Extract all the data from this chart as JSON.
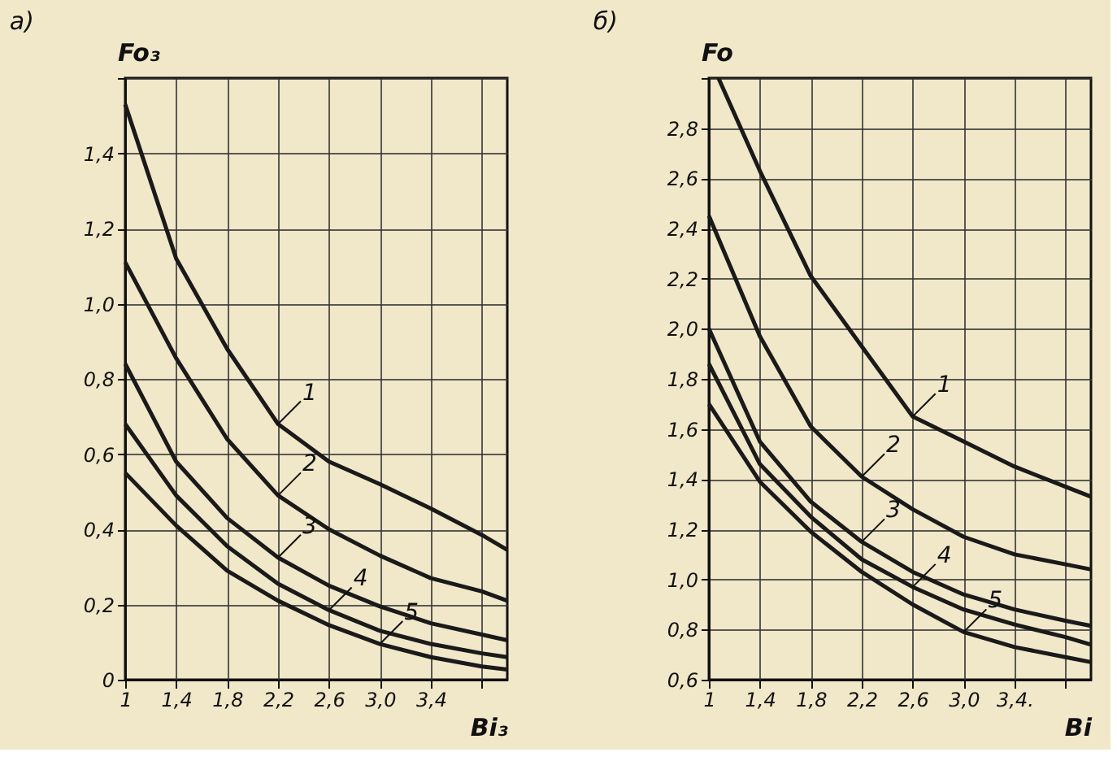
{
  "chart_data": [
    {
      "type": "line",
      "title": "а)",
      "xlabel": "Bi₃",
      "ylabel": "Fo₃",
      "grid": true,
      "legend": false,
      "marker": "none",
      "line_style": "solid",
      "xlim": [
        1,
        4.0
      ],
      "ylim": [
        0,
        1.6
      ],
      "xticks": [
        1,
        {
          "value": 1.4,
          "label": "1,4"
        },
        {
          "value": 1.8,
          "label": "1,8"
        },
        {
          "value": 2.2,
          "label": "2,2"
        },
        {
          "value": 2.6,
          "label": "2,6"
        },
        {
          "value": 3.0,
          "label": "3,0"
        },
        {
          "value": 3.4,
          "label": "3,4"
        },
        {
          "value": 3.8,
          "label": null
        }
      ],
      "yticks": [
        0,
        {
          "value": 0.2,
          "label": "0,2"
        },
        {
          "value": 0.4,
          "label": "0,4"
        },
        {
          "value": 0.6,
          "label": "0,6"
        },
        {
          "value": 0.8,
          "label": "0,8"
        },
        {
          "value": 1.0,
          "label": "1,0"
        },
        {
          "value": 1.2,
          "label": "1,2"
        },
        {
          "value": 1.4,
          "label": "1,4"
        },
        {
          "value": 1.6,
          "label": null
        }
      ],
      "x": [
        1,
        1.4,
        1.8,
        2.2,
        2.6,
        3.0,
        3.4,
        3.8,
        4.0
      ],
      "series": [
        {
          "color": "#1a1a1a",
          "values": [
            1.53,
            1.12,
            0.88,
            0.68,
            0.58,
            0.52,
            0.455,
            0.385,
            0.345
          ]
        },
        {
          "color": "#1a1a1a",
          "values": [
            1.11,
            0.855,
            0.64,
            0.49,
            0.4,
            0.33,
            0.27,
            0.235,
            0.21
          ]
        },
        {
          "color": "#1a1a1a",
          "values": [
            0.84,
            0.58,
            0.43,
            0.325,
            0.25,
            0.195,
            0.15,
            0.12,
            0.105
          ]
        },
        {
          "color": "#1a1a1a",
          "values": [
            0.68,
            0.49,
            0.355,
            0.255,
            0.185,
            0.13,
            0.095,
            0.07,
            0.06
          ]
        },
        {
          "color": "#1a1a1a",
          "values": [
            0.55,
            0.41,
            0.29,
            0.21,
            0.145,
            0.095,
            0.06,
            0.035,
            0.027
          ]
        }
      ],
      "annotations": [
        {
          "text": "1",
          "x": 2.2,
          "y": 0.68
        },
        {
          "text": "2",
          "x": 2.2,
          "y": 0.49
        },
        {
          "text": "3",
          "x": 2.2,
          "y": 0.325
        },
        {
          "text": "4",
          "x": 2.6,
          "y": 0.185
        },
        {
          "text": "5",
          "x": 3.0,
          "y": 0.095
        }
      ]
    },
    {
      "type": "line",
      "title": "б)",
      "xlabel": "Bi",
      "ylabel": "Fo",
      "grid": true,
      "legend": false,
      "marker": "none",
      "line_style": "solid",
      "xlim": [
        1,
        4.0
      ],
      "ylim": [
        0.6,
        3.0
      ],
      "xticks": [
        1,
        {
          "value": 1.4,
          "label": "1,4"
        },
        {
          "value": 1.8,
          "label": "1,8"
        },
        {
          "value": 2.2,
          "label": "2,2"
        },
        {
          "value": 2.6,
          "label": "2,6"
        },
        {
          "value": 3.0,
          "label": "3,0"
        },
        {
          "value": 3.4,
          "label": "3,4."
        },
        {
          "value": 3.8,
          "label": null
        }
      ],
      "yticks": [
        {
          "value": 0.6,
          "label": "0,6"
        },
        {
          "value": 0.8,
          "label": "0,8"
        },
        {
          "value": 1.0,
          "label": "1,0"
        },
        {
          "value": 1.2,
          "label": "1,2"
        },
        {
          "value": 1.4,
          "label": "1,4"
        },
        {
          "value": 1.6,
          "label": "1,6"
        },
        {
          "value": 1.8,
          "label": "1,8"
        },
        {
          "value": 2.0,
          "label": "2,0"
        },
        {
          "value": 2.2,
          "label": "2,2"
        },
        {
          "value": 2.4,
          "label": "2,4"
        },
        {
          "value": 2.6,
          "label": "2,6"
        },
        {
          "value": 2.8,
          "label": "2,8"
        },
        {
          "value": 3.0,
          "label": null
        }
      ],
      "series": [
        {
          "color": "#1a1a1a",
          "x": [
            1.075,
            1.4,
            1.8,
            2.2,
            2.6,
            3.0,
            3.4,
            3.8,
            4.0
          ],
          "values": [
            3.0,
            2.63,
            2.21,
            1.93,
            1.65,
            1.55,
            1.45,
            1.37,
            1.33
          ]
        },
        {
          "color": "#1a1a1a",
          "x": [
            1,
            1.4,
            1.8,
            2.2,
            2.6,
            3.0,
            3.4,
            3.8,
            4.0
          ],
          "values": [
            2.45,
            1.97,
            1.61,
            1.41,
            1.28,
            1.17,
            1.1,
            1.06,
            1.04
          ]
        },
        {
          "color": "#1a1a1a",
          "x": [
            1,
            1.4,
            1.8,
            2.2,
            2.6,
            3.0,
            3.4,
            3.8,
            4.0
          ],
          "values": [
            2.0,
            1.55,
            1.31,
            1.15,
            1.03,
            0.94,
            0.88,
            0.835,
            0.815
          ]
        },
        {
          "color": "#1a1a1a",
          "x": [
            1,
            1.4,
            1.8,
            2.2,
            2.6,
            3.0,
            3.4,
            3.8,
            4.0
          ],
          "values": [
            1.86,
            1.46,
            1.25,
            1.08,
            0.97,
            0.88,
            0.82,
            0.77,
            0.74
          ]
        },
        {
          "color": "#1a1a1a",
          "x": [
            1,
            1.4,
            1.8,
            2.2,
            2.6,
            3.0,
            3.4,
            3.8,
            4.0
          ],
          "values": [
            1.7,
            1.39,
            1.19,
            1.03,
            0.9,
            0.79,
            0.73,
            0.69,
            0.67
          ]
        }
      ],
      "annotations": [
        {
          "text": "1",
          "x": 2.6,
          "y": 1.65
        },
        {
          "text": "2",
          "x": 2.2,
          "y": 1.41
        },
        {
          "text": "3",
          "x": 2.2,
          "y": 1.15
        },
        {
          "text": "4",
          "x": 2.6,
          "y": 0.97
        },
        {
          "text": "5",
          "x": 3.0,
          "y": 0.79
        }
      ]
    }
  ]
}
